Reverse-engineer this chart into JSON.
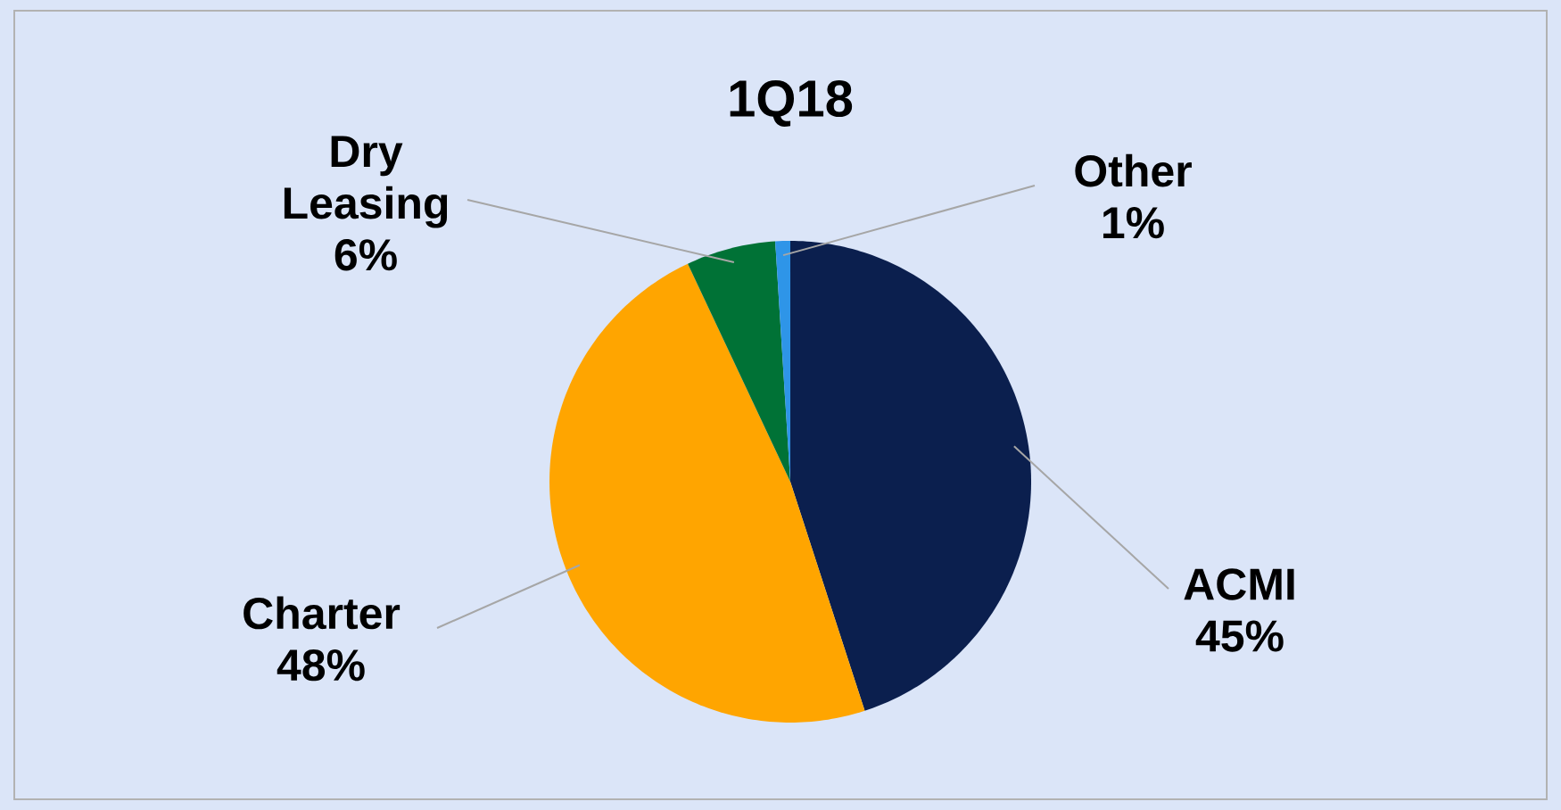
{
  "chart_data": {
    "type": "pie",
    "title": "1Q18",
    "categories": [
      "ACMI",
      "Charter",
      "Dry Leasing",
      "Other"
    ],
    "values": [
      45,
      48,
      6,
      1
    ],
    "value_labels": [
      "45%",
      "48%",
      "6%",
      "1%"
    ],
    "colors": [
      "#0b1f4e",
      "#ffa500",
      "#007236",
      "#2e95e8"
    ]
  }
}
